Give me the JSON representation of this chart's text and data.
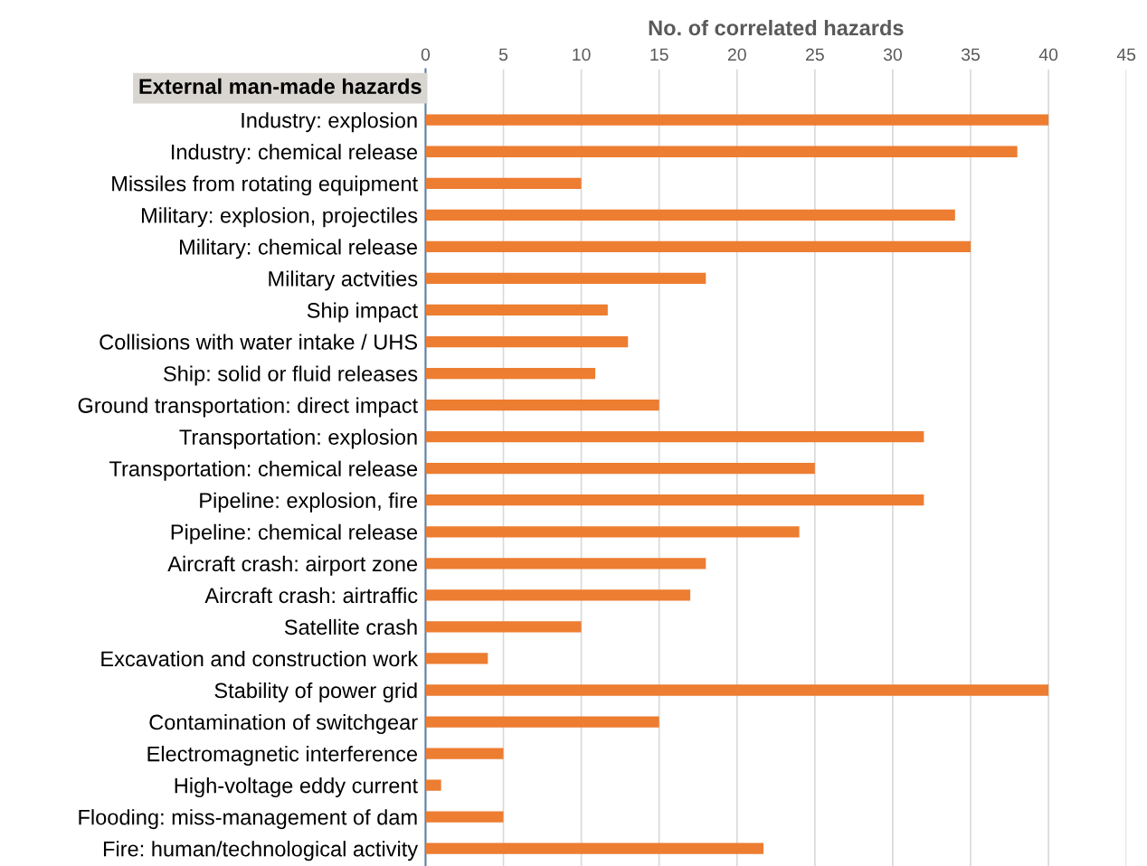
{
  "chart_data": {
    "type": "bar",
    "orientation": "horizontal",
    "xlabel": "No. of correlated hazards",
    "annotations": [
      "External man-made hazards"
    ],
    "categories": [
      "Industry: explosion",
      "Industry: chemical release",
      "Missiles from rotating equipment",
      "Military: explosion, projectiles",
      "Military: chemical release",
      "Military actvities",
      "Ship impact",
      "Collisions with water intake / UHS",
      "Ship: solid or fluid releases",
      "Ground transportation: direct impact",
      "Transportation: explosion",
      "Transportation: chemical release",
      "Pipeline: explosion, fire",
      "Pipeline: chemical release",
      "Aircraft crash: airport zone",
      "Aircraft crash: airtraffic",
      "Satellite crash",
      "Excavation and construction work",
      "Stability of power grid",
      "Contamination of switchgear",
      "Electromagnetic interference",
      "High-voltage eddy current",
      "Flooding: miss-management of dam",
      "Fire: human/technological activity"
    ],
    "values": [
      40,
      38,
      10,
      34,
      35,
      18,
      11.7,
      13,
      10.9,
      15,
      32,
      25,
      32,
      24,
      18,
      17,
      10,
      4,
      40,
      15,
      5,
      1,
      5,
      21.7
    ],
    "color": "#ed7d31",
    "xlim": [
      0,
      45
    ],
    "xticks": [
      0,
      5,
      10,
      15,
      20,
      25,
      30,
      35,
      40,
      45
    ],
    "grid": "x"
  }
}
